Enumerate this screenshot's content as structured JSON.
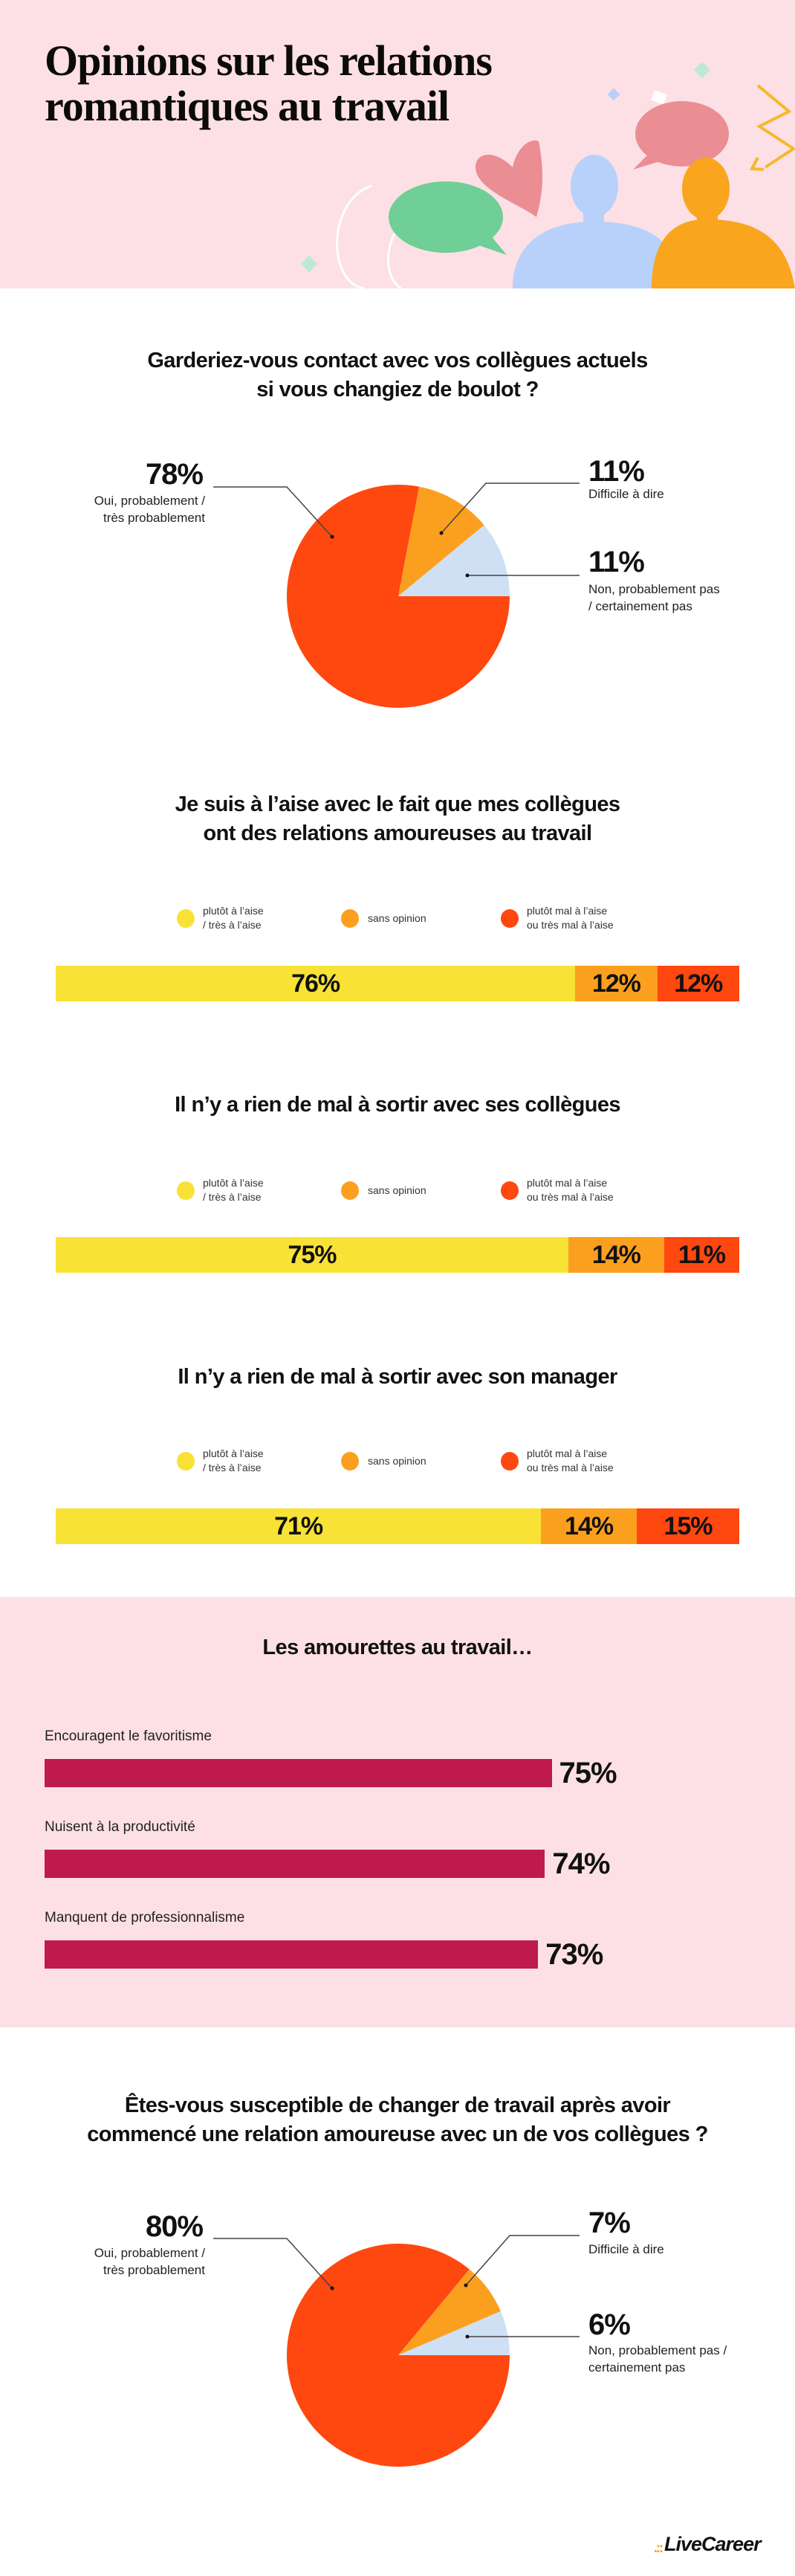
{
  "header": {
    "title_line1": "Opinions sur les relations",
    "title_line2": "romantiques au travail"
  },
  "colors": {
    "background_pink": "#fde0e5",
    "red": "#ff4710",
    "orange": "#fba01e",
    "light_blue": "#cfe0f5",
    "yellow": "#f8e235",
    "crimson": "#be1a50"
  },
  "chart_data": [
    {
      "type": "pie",
      "title_lines": [
        "Garderiez-vous contact avec vos collègues actuels",
        "si vous changiez de boulot ?"
      ],
      "slices": [
        {
          "label": "Oui, probablement /\ntrès probablement",
          "value": 78,
          "value_label": "78%",
          "color": "#ff4710"
        },
        {
          "label": "Difficile à dire",
          "value": 11,
          "value_label": "11%",
          "color": "#fba01e"
        },
        {
          "label": "Non, probablement pas\n/ certainement pas",
          "value": 11,
          "value_label": "11%",
          "color": "#cfe0f5"
        }
      ]
    },
    {
      "type": "bar",
      "stacked": true,
      "orientation": "horizontal",
      "title_lines": [
        "Je suis à l’aise avec le fait que mes collègues",
        "ont des relations amoureuses au travail"
      ],
      "legend": [
        {
          "label": "plutôt à l’aise\n/ très à l’aise",
          "color": "#f8e235"
        },
        {
          "label": "sans opinion",
          "color": "#fba01e"
        },
        {
          "label": "plutôt mal à l’aise\nou très mal à l’aise",
          "color": "#ff4710"
        }
      ],
      "values": [
        76,
        12,
        12
      ],
      "value_labels": [
        "76%",
        "12%",
        "12%"
      ]
    },
    {
      "type": "bar",
      "stacked": true,
      "orientation": "horizontal",
      "title_lines": [
        "Il n’y a rien de mal à sortir avec ses collègues"
      ],
      "legend": [
        {
          "label": "plutôt à l’aise\n/ très à l’aise",
          "color": "#f8e235"
        },
        {
          "label": "sans opinion",
          "color": "#fba01e"
        },
        {
          "label": "plutôt mal à l’aise\nou très mal à l’aise",
          "color": "#ff4710"
        }
      ],
      "values": [
        75,
        14,
        11
      ],
      "value_labels": [
        "75%",
        "14%",
        "11%"
      ]
    },
    {
      "type": "bar",
      "stacked": true,
      "orientation": "horizontal",
      "title_lines": [
        "Il n’y a rien de mal à sortir avec son manager"
      ],
      "legend": [
        {
          "label": "plutôt à l’aise\n/ très à l’aise",
          "color": "#f8e235"
        },
        {
          "label": "sans opinion",
          "color": "#fba01e"
        },
        {
          "label": "plutôt mal à l’aise\nou très mal à l’aise",
          "color": "#ff4710"
        }
      ],
      "values": [
        71,
        14,
        15
      ],
      "value_labels": [
        "71%",
        "14%",
        "15%"
      ]
    },
    {
      "type": "bar",
      "orientation": "horizontal",
      "title_lines": [
        "Les amourettes au travail…"
      ],
      "categories": [
        "Encouragent le favoritisme",
        "Nuisent à la productivité",
        "Manquent de professionnalisme"
      ],
      "values": [
        75,
        74,
        73
      ],
      "value_labels": [
        "75%",
        "74%",
        "73%"
      ],
      "color": "#be1a50"
    },
    {
      "type": "pie",
      "title_lines": [
        "Êtes-vous susceptible de changer de travail après avoir",
        "commencé une relation amoureuse avec un de vos collègues ?"
      ],
      "slices": [
        {
          "label": "Oui, probablement /\ntrès probablement",
          "value": 80,
          "value_label": "80%",
          "color": "#ff4710"
        },
        {
          "label": "Difficile à dire",
          "value": 7,
          "value_label": "7%",
          "color": "#fba01e"
        },
        {
          "label": "Non, probablement pas /\ncertainement pas",
          "value": 6,
          "value_label": "6%",
          "color": "#cfe0f5"
        }
      ]
    }
  ],
  "footer": {
    "logo": "LiveCareer"
  }
}
